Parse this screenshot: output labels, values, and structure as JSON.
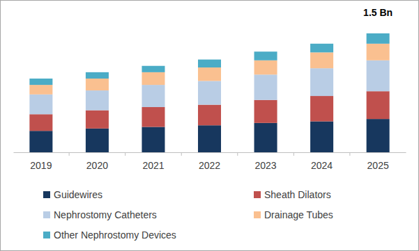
{
  "chart_data": {
    "type": "bar",
    "stacked": true,
    "tick_labels": "x",
    "legend": "bottom",
    "annotation": "1.5 Bn",
    "categories": [
      "2019",
      "2020",
      "2021",
      "2022",
      "2023",
      "2024",
      "2025"
    ],
    "ylim": [
      0,
      1.5
    ],
    "series": [
      {
        "name": "Guidewires",
        "color": "#17375e",
        "values": [
          0.27,
          0.3,
          0.32,
          0.34,
          0.37,
          0.39,
          0.42
        ]
      },
      {
        "name": "Sheath Dilators",
        "color": "#c0504d",
        "values": [
          0.21,
          0.23,
          0.25,
          0.26,
          0.29,
          0.32,
          0.35
        ]
      },
      {
        "name": "Nephrostomy Catheters",
        "color": "#b9cde5",
        "values": [
          0.25,
          0.25,
          0.28,
          0.3,
          0.32,
          0.35,
          0.39
        ]
      },
      {
        "name": "Drainage Tubes",
        "color": "#fac090",
        "values": [
          0.12,
          0.15,
          0.16,
          0.17,
          0.18,
          0.2,
          0.21
        ]
      },
      {
        "name": "Other Nephrostomy Devices",
        "color": "#4bacc6",
        "values": [
          0.08,
          0.08,
          0.08,
          0.1,
          0.11,
          0.11,
          0.13
        ]
      }
    ]
  }
}
